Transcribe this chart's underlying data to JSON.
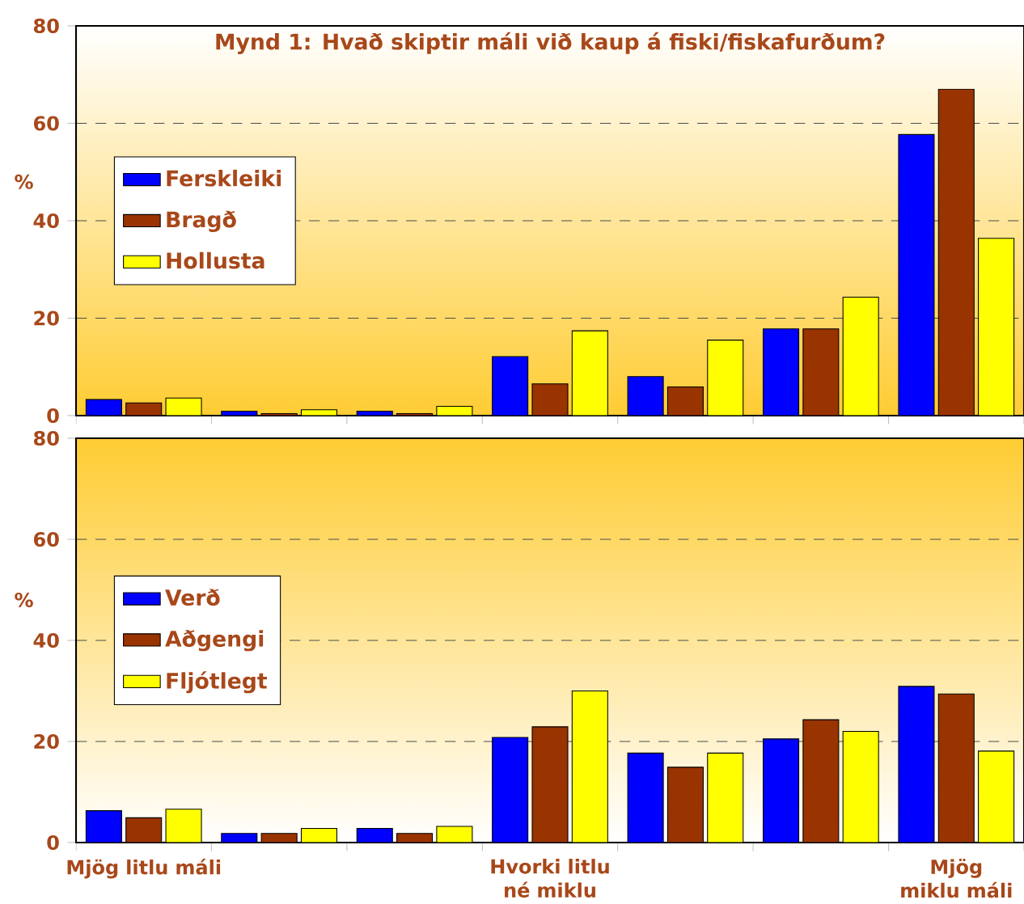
{
  "chart_data": [
    {
      "type": "bar",
      "title": "Mynd 1: Hvað skiptir máli við kaup á fiski/fiskafurðum?",
      "ylabel": "%",
      "categories": [
        null,
        null,
        null,
        null,
        null,
        null,
        null
      ],
      "series": [
        {
          "name": "Ferskleiki",
          "color": "#0000ff",
          "values": [
            3.3,
            0.9,
            0.9,
            12.1,
            8.0,
            17.8,
            57.7
          ]
        },
        {
          "name": "Bragð",
          "color": "#993300",
          "values": [
            2.6,
            0.4,
            0.4,
            6.5,
            5.9,
            17.8,
            67.0
          ]
        },
        {
          "name": "Hollusta",
          "color": "#ffff00",
          "values": [
            3.6,
            1.2,
            1.9,
            17.4,
            15.5,
            24.3,
            36.4
          ]
        }
      ],
      "ylim": [
        0,
        80
      ],
      "yticks": [
        0,
        20,
        40,
        60,
        80
      ],
      "grid": "y",
      "legend": "left",
      "tick_labels": "y"
    },
    {
      "type": "bar",
      "ylabel": "%",
      "categories": [
        "Mjög litlu máli",
        null,
        null,
        "Hvorki litlu né miklu",
        null,
        null,
        "Mjög miklu máli"
      ],
      "series": [
        {
          "name": "Verð",
          "color": "#0000ff",
          "values": [
            6.3,
            1.8,
            2.8,
            20.8,
            17.7,
            20.5,
            30.9
          ]
        },
        {
          "name": "Aðgengi",
          "color": "#993300",
          "values": [
            4.9,
            1.8,
            1.8,
            22.9,
            14.9,
            24.3,
            29.4
          ]
        },
        {
          "name": "Fljótlegt",
          "color": "#ffff00",
          "values": [
            6.6,
            2.8,
            3.2,
            30.0,
            17.7,
            22.0,
            18.1
          ]
        }
      ],
      "ylim": [
        0,
        80
      ],
      "yticks": [
        0,
        20,
        40,
        60,
        80
      ],
      "grid": "y",
      "legend": "left"
    }
  ]
}
